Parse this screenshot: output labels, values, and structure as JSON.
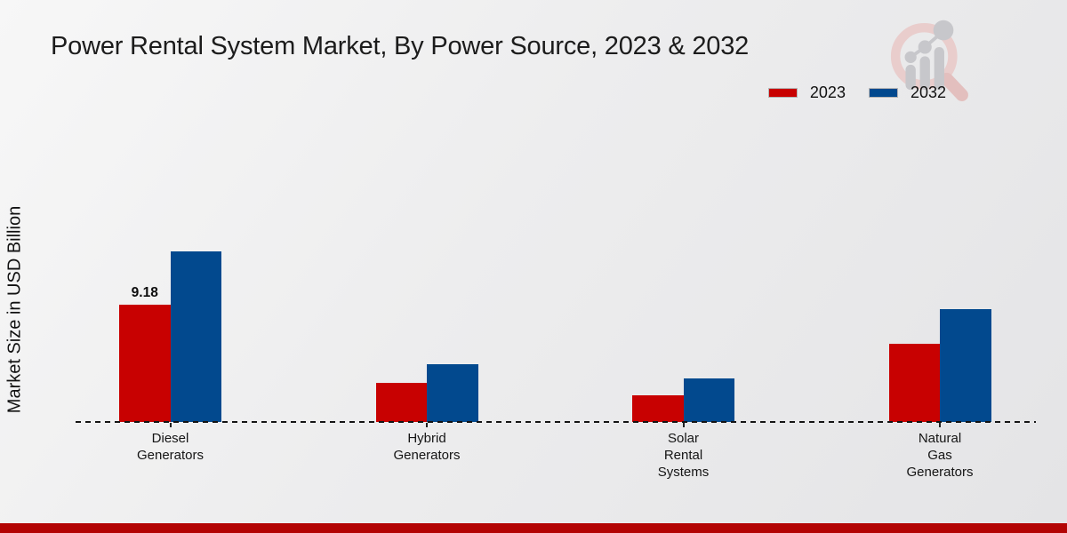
{
  "title": "Power Rental System Market, By Power Source, 2023 & 2032",
  "legend": {
    "items": [
      {
        "label": "2023",
        "color": "#c80101"
      },
      {
        "label": "2032",
        "color": "#02498e"
      }
    ]
  },
  "logo": {
    "name": "market-research-magnifier-logo"
  },
  "footer": {
    "accent_color": "#b30404"
  },
  "chart_data": {
    "type": "bar",
    "title": "Power Rental System Market, By Power Source, 2023 & 2032",
    "ylabel": "Market Size in USD Billion",
    "xlabel": "",
    "categories": [
      "Diesel Generators",
      "Hybrid Generators",
      "Solar Rental Systems",
      "Natural Gas Generators"
    ],
    "category_label_lines": [
      [
        "Diesel",
        "Generators"
      ],
      [
        "Hybrid",
        "Generators"
      ],
      [
        "Solar",
        "Rental",
        "Systems"
      ],
      [
        "Natural",
        "Gas",
        "Generators"
      ]
    ],
    "series": [
      {
        "name": "2023",
        "color": "#c80101",
        "values": [
          9.18,
          3.05,
          2.1,
          6.1
        ]
      },
      {
        "name": "2032",
        "color": "#02498e",
        "values": [
          13.35,
          4.5,
          3.4,
          8.8
        ]
      }
    ],
    "bar_labels": [
      {
        "category_index": 0,
        "series_index": 0,
        "text": "9.18"
      }
    ],
    "ylim": [
      0,
      14
    ],
    "grid": false,
    "baseline_style": "dashed",
    "legend_position": "top-right"
  }
}
